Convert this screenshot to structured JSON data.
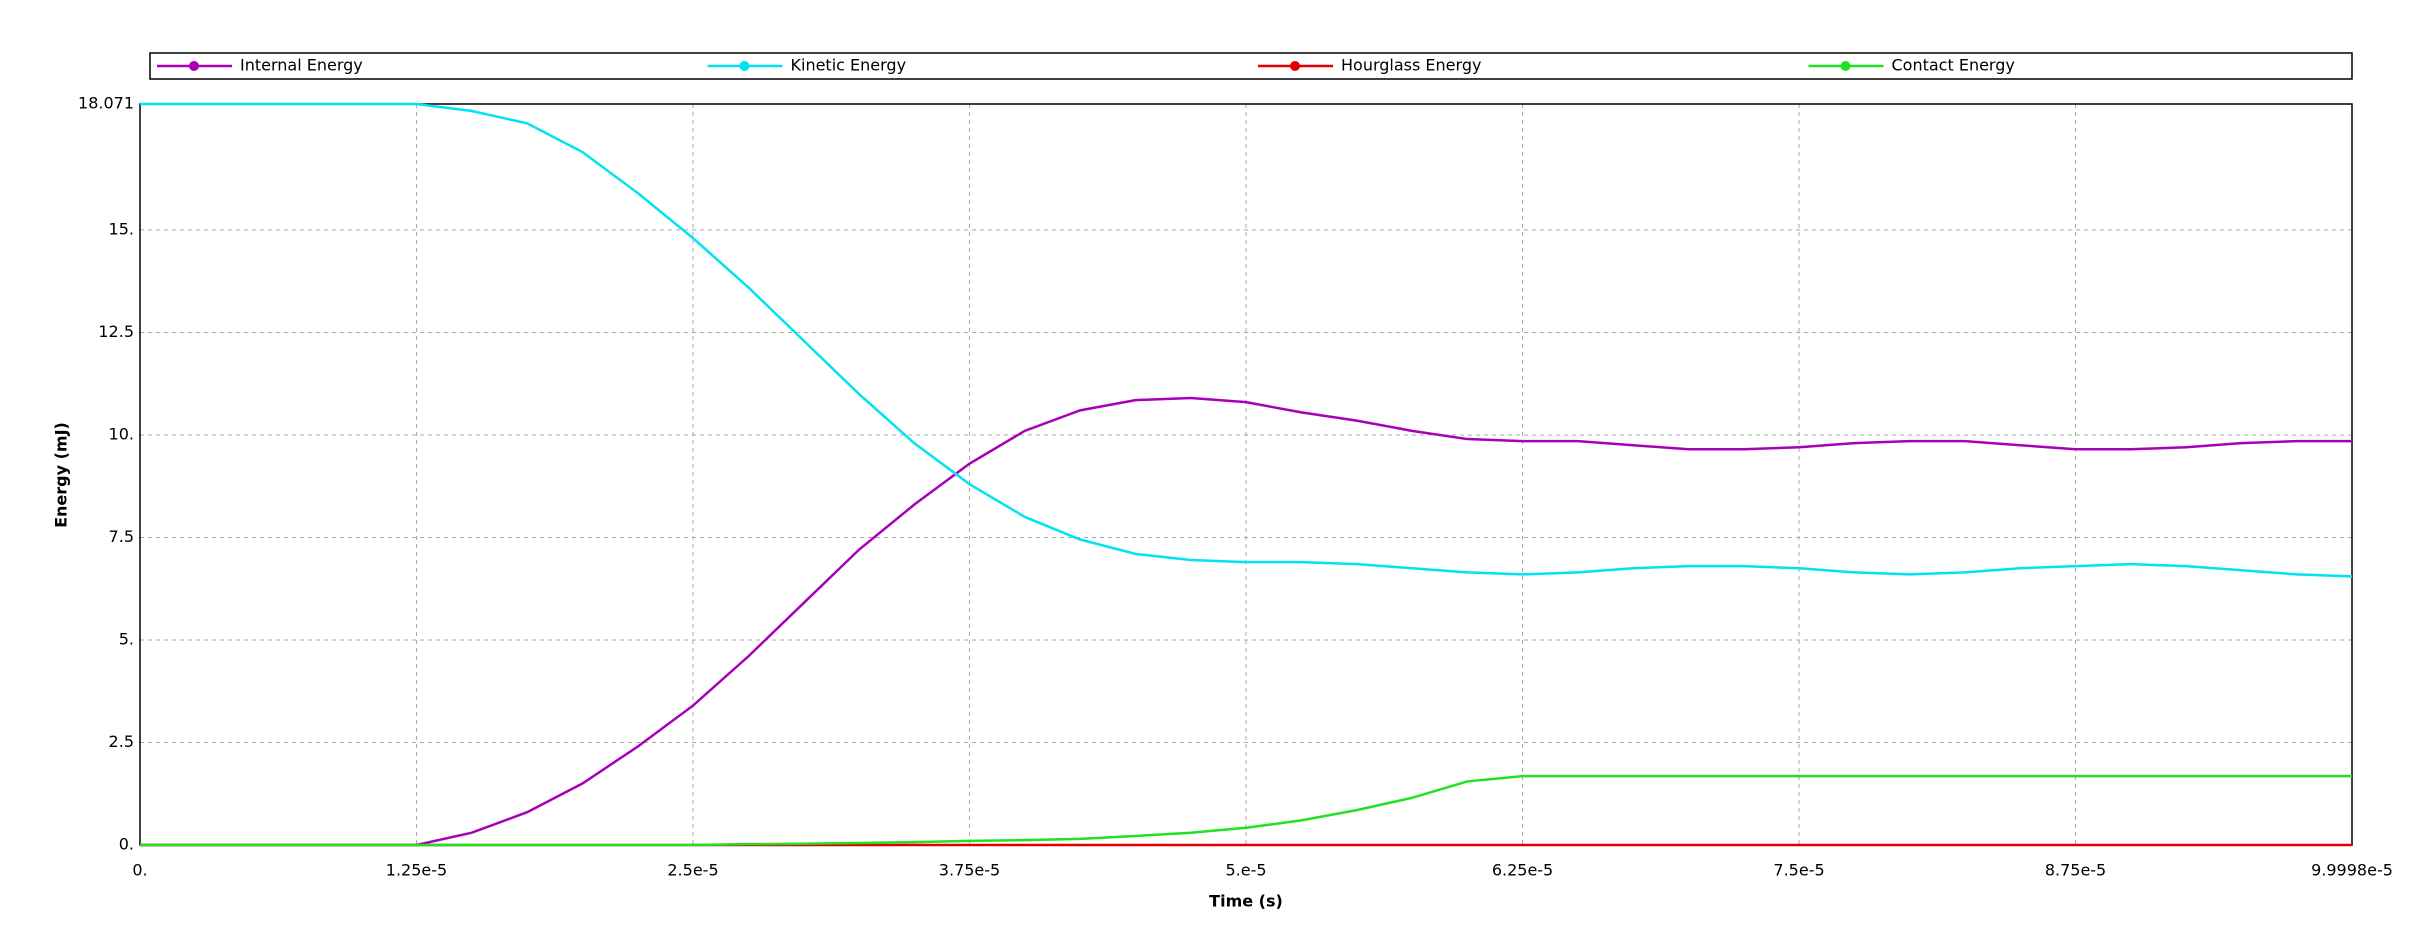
{
  "chart_data": {
    "type": "line",
    "xlabel": "Time (s)",
    "ylabel": "Energy (mJ)",
    "x": [
      0,
      2.5e-06,
      5e-06,
      7.5e-06,
      1e-05,
      1.25e-05,
      1.5e-05,
      1.75e-05,
      2e-05,
      2.25e-05,
      2.5e-05,
      2.75e-05,
      3e-05,
      3.25e-05,
      3.5e-05,
      3.75e-05,
      4e-05,
      4.25e-05,
      4.5e-05,
      4.75e-05,
      5e-05,
      5.25e-05,
      5.5e-05,
      5.75e-05,
      6e-05,
      6.25e-05,
      6.5e-05,
      6.75e-05,
      7e-05,
      7.25e-05,
      7.5e-05,
      7.75e-05,
      8e-05,
      8.25e-05,
      8.5e-05,
      8.75e-05,
      9e-05,
      9.25e-05,
      9.5e-05,
      9.75e-05,
      9.9998e-05
    ],
    "series": [
      {
        "name": "Internal Energy",
        "color": "#a800b8",
        "values": [
          0,
          0,
          0,
          0,
          0,
          0,
          0.3,
          0.8,
          1.5,
          2.4,
          3.4,
          4.6,
          5.9,
          7.2,
          8.3,
          9.3,
          10.1,
          10.6,
          10.85,
          10.9,
          10.8,
          10.55,
          10.35,
          10.1,
          9.9,
          9.85,
          9.85,
          9.75,
          9.65,
          9.65,
          9.7,
          9.8,
          9.85,
          9.85,
          9.75,
          9.65,
          9.65,
          9.7,
          9.8,
          9.85,
          9.85
        ]
      },
      {
        "name": "Kinetic Energy",
        "color": "#00e4f0",
        "values": [
          18.071,
          18.071,
          18.071,
          18.071,
          18.071,
          18.071,
          17.9,
          17.6,
          16.9,
          15.9,
          14.8,
          13.6,
          12.3,
          11.0,
          9.8,
          8.8,
          8.0,
          7.45,
          7.1,
          6.95,
          6.9,
          6.9,
          6.85,
          6.75,
          6.65,
          6.6,
          6.65,
          6.75,
          6.8,
          6.8,
          6.75,
          6.65,
          6.6,
          6.65,
          6.75,
          6.8,
          6.85,
          6.8,
          6.7,
          6.6,
          6.55
        ]
      },
      {
        "name": "Hourglass Energy",
        "color": "#e00000",
        "values": [
          0,
          0,
          0,
          0,
          0,
          0,
          0,
          0,
          0,
          0,
          0,
          0,
          0,
          0,
          0,
          0,
          0,
          0,
          0,
          0,
          0,
          0,
          0,
          0,
          0,
          0,
          0,
          0,
          0,
          0,
          0,
          0,
          0,
          0,
          0,
          0,
          0,
          0,
          0,
          0,
          0
        ]
      },
      {
        "name": "Contact Energy",
        "color": "#22e022",
        "values": [
          0,
          0,
          0,
          0,
          0,
          0,
          0,
          0,
          0,
          0,
          0,
          0.02,
          0.03,
          0.05,
          0.07,
          0.1,
          0.12,
          0.15,
          0.22,
          0.3,
          0.42,
          0.6,
          0.85,
          1.15,
          1.55,
          1.68,
          1.68,
          1.68,
          1.68,
          1.68,
          1.68,
          1.68,
          1.68,
          1.68,
          1.68,
          1.68,
          1.68,
          1.68,
          1.68,
          1.68,
          1.68
        ]
      }
    ],
    "xlim": [
      0,
      9.9998e-05
    ],
    "xticks": [
      {
        "value": 0,
        "label": "0."
      },
      {
        "value": 1.25e-05,
        "label": "1.25e-5"
      },
      {
        "value": 2.5e-05,
        "label": "2.5e-5"
      },
      {
        "value": 3.75e-05,
        "label": "3.75e-5"
      },
      {
        "value": 5e-05,
        "label": "5.e-5"
      },
      {
        "value": 6.25e-05,
        "label": "6.25e-5"
      },
      {
        "value": 7.5e-05,
        "label": "7.5e-5"
      },
      {
        "value": 8.75e-05,
        "label": "8.75e-5"
      },
      {
        "value": 9.9998e-05,
        "label": "9.9998e-5"
      }
    ],
    "ylim": [
      0,
      18.071
    ],
    "yticks": [
      {
        "value": 0,
        "label": "0."
      },
      2.5,
      {
        "value": 5,
        "label": "5."
      },
      7.5,
      {
        "value": 10,
        "label": "10."
      },
      12.5,
      {
        "value": 15,
        "label": "15."
      },
      18.071
    ],
    "grid": true,
    "legend": "top"
  }
}
